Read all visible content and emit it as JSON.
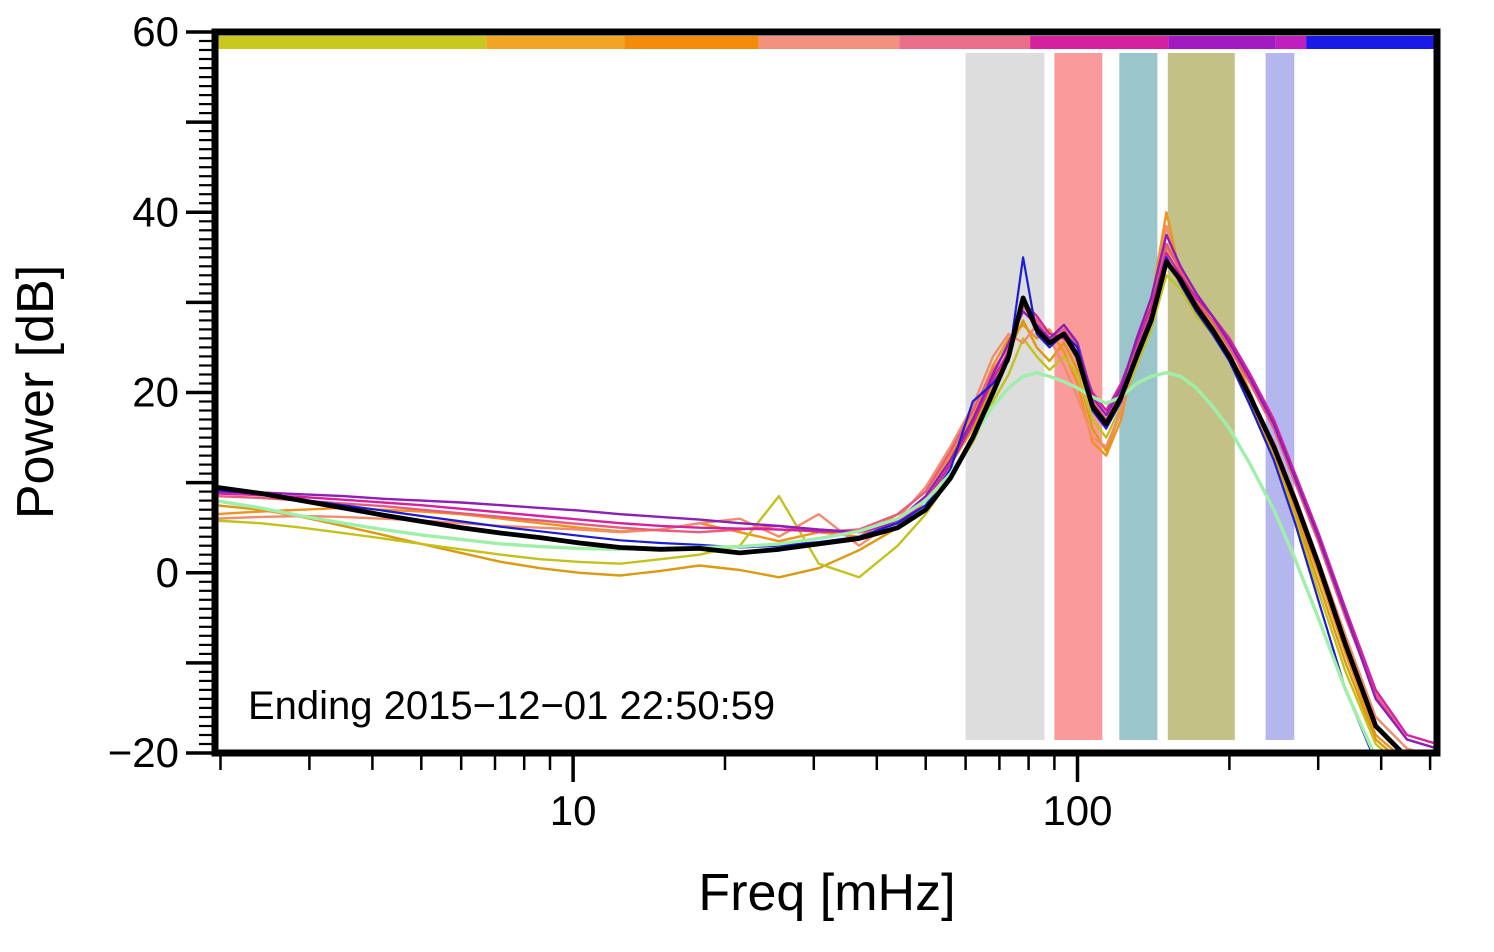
{
  "figure": {
    "background": "#FFFFFF",
    "frame_color": "#000000"
  },
  "chart_data": {
    "type": "line",
    "title": "",
    "xlabel": "Freq [mHz]",
    "ylabel": "Power [dB]",
    "annotation": "Ending 2015−12−01 22:50:59",
    "x_scale": "log",
    "grid": false,
    "legend": "none",
    "xlim": [
      1.95,
      516
    ],
    "ylim": [
      -20,
      60
    ],
    "x_ticks": [
      {
        "value": 10,
        "label": "10"
      },
      {
        "value": 100,
        "label": "100"
      }
    ],
    "y_ticks": [
      {
        "value": 60,
        "label": "60"
      },
      {
        "value": 40,
        "label": "40"
      },
      {
        "value": 20,
        "label": "20"
      },
      {
        "value": 0,
        "label": "0"
      },
      {
        "value": -20,
        "label": "−20"
      }
    ],
    "bands": [
      {
        "name": "gray",
        "from": 60,
        "to": 86,
        "color": "#D9D9D9",
        "opacity": 0.9
      },
      {
        "name": "red",
        "from": 90,
        "to": 112,
        "color": "#F98F8F",
        "opacity": 0.9
      },
      {
        "name": "teal",
        "from": 121,
        "to": 144,
        "color": "#8FBFC4",
        "opacity": 0.9
      },
      {
        "name": "olive",
        "from": 151,
        "to": 205,
        "color": "#BEBA7A",
        "opacity": 0.9
      },
      {
        "name": "lavender",
        "from": 236,
        "to": 269,
        "color": "#A9A9EC",
        "opacity": 0.85
      }
    ],
    "top_bar_segments": [
      {
        "from": 0.0,
        "to": 0.222,
        "color": "#C8C81E"
      },
      {
        "from": 0.222,
        "to": 0.335,
        "color": "#F2A423"
      },
      {
        "from": 0.335,
        "to": 0.445,
        "color": "#F28C0A"
      },
      {
        "from": 0.445,
        "to": 0.56,
        "color": "#F2917E"
      },
      {
        "from": 0.56,
        "to": 0.667,
        "color": "#E86E8A"
      },
      {
        "from": 0.667,
        "to": 0.78,
        "color": "#D6219E"
      },
      {
        "from": 0.78,
        "to": 0.868,
        "color": "#A21BC2"
      },
      {
        "from": 0.868,
        "to": 0.893,
        "color": "#BF1FBF"
      },
      {
        "from": 0.893,
        "to": 1.0,
        "color": "#1A1AE8"
      }
    ],
    "x": [
      1.95,
      2.4,
      2.9,
      3.5,
      4.2,
      5.0,
      6.0,
      7.2,
      8.6,
      10.3,
      12.4,
      14.9,
      17.8,
      21.4,
      25.6,
      30.7,
      36.9,
      44.0,
      50.0,
      56.0,
      62.0,
      68.0,
      73.0,
      78.0,
      83.0,
      88.0,
      94.0,
      100.0,
      107.0,
      114.0,
      122.0,
      131.0,
      140.0,
      150.0,
      160.0,
      172.0,
      185.0,
      200.0,
      220.0,
      245.0,
      270.0,
      300.0,
      340.0,
      390.0,
      450.0,
      516.0
    ],
    "series": [
      {
        "name": "orange",
        "color": "#F0921E",
        "width": 2.4,
        "values": [
          6.5,
          6.8,
          7.0,
          7.2,
          7.0,
          6.8,
          6.5,
          6.0,
          5.5,
          5.0,
          4.6,
          4.8,
          5.5,
          4.5,
          3.5,
          4.5,
          4.0,
          6.5,
          9.0,
          13.0,
          17.5,
          23.0,
          26.0,
          27.5,
          26.0,
          27.0,
          24.5,
          21.0,
          14.5,
          13.0,
          17.0,
          25.5,
          30.0,
          40.0,
          33.0,
          30.5,
          28.0,
          25.5,
          20.0,
          13.5,
          7.0,
          0.0,
          -9.0,
          -18.0,
          -21.0,
          -22.0
        ]
      },
      {
        "name": "goldenrod",
        "color": "#DB9A10",
        "width": 2.4,
        "values": [
          7.5,
          7.0,
          6.2,
          5.2,
          4.2,
          3.2,
          2.2,
          1.2,
          0.5,
          0.0,
          -0.3,
          0.2,
          0.8,
          0.3,
          -0.5,
          0.5,
          2.5,
          5.0,
          8.0,
          12.0,
          16.0,
          21.0,
          24.5,
          28.0,
          25.0,
          23.5,
          25.5,
          22.5,
          16.0,
          13.5,
          18.0,
          23.5,
          28.5,
          36.0,
          34.0,
          30.0,
          27.5,
          24.5,
          19.0,
          13.0,
          6.5,
          -1.0,
          -10.0,
          -18.5,
          -21.5,
          -22.5
        ]
      },
      {
        "name": "olive",
        "color": "#C2C21C",
        "width": 2.4,
        "values": [
          5.8,
          5.5,
          5.0,
          4.4,
          3.8,
          3.2,
          2.6,
          2.0,
          1.5,
          1.2,
          1.0,
          1.5,
          2.0,
          3.0,
          8.5,
          1.0,
          -0.5,
          3.0,
          6.5,
          10.5,
          14.5,
          19.0,
          22.0,
          26.0,
          24.0,
          22.5,
          24.0,
          22.0,
          17.0,
          15.0,
          18.5,
          23.0,
          27.0,
          33.0,
          31.5,
          28.5,
          26.5,
          23.5,
          18.5,
          12.5,
          6.0,
          -2.0,
          -11.0,
          -19.0,
          -22.0,
          -23.0
        ]
      },
      {
        "name": "salmon",
        "color": "#F28C6E",
        "width": 2.4,
        "values": [
          6.0,
          6.2,
          6.3,
          6.2,
          6.0,
          5.8,
          5.5,
          5.2,
          5.0,
          4.8,
          4.5,
          4.8,
          5.5,
          6.0,
          4.0,
          6.5,
          3.0,
          6.0,
          9.5,
          14.0,
          18.5,
          24.0,
          26.5,
          25.5,
          27.5,
          26.0,
          23.0,
          19.5,
          15.0,
          14.0,
          18.0,
          24.5,
          29.5,
          38.5,
          32.5,
          29.0,
          27.0,
          24.5,
          19.5,
          14.5,
          8.5,
          1.5,
          -7.0,
          -16.0,
          -19.5,
          -20.5
        ]
      },
      {
        "name": "pink",
        "color": "#E85A7E",
        "width": 2.4,
        "values": [
          8.5,
          8.3,
          8.0,
          7.7,
          7.4,
          7.0,
          6.6,
          6.2,
          5.8,
          5.4,
          5.0,
          4.7,
          4.5,
          4.8,
          5.2,
          4.5,
          4.8,
          6.5,
          9.0,
          13.5,
          18.0,
          22.5,
          25.0,
          29.5,
          28.0,
          26.0,
          27.0,
          25.0,
          19.0,
          17.0,
          20.0,
          25.0,
          29.0,
          36.5,
          33.5,
          30.0,
          28.0,
          25.0,
          21.0,
          16.0,
          10.0,
          3.5,
          -5.0,
          -13.5,
          -18.5,
          -19.5
        ]
      },
      {
        "name": "magenta",
        "color": "#D6219E",
        "width": 2.4,
        "values": [
          8.8,
          8.6,
          8.4,
          8.1,
          7.8,
          7.5,
          7.1,
          6.7,
          6.3,
          5.9,
          5.5,
          5.2,
          5.0,
          4.9,
          4.8,
          4.6,
          4.5,
          5.5,
          8.0,
          12.0,
          16.5,
          21.5,
          24.5,
          30.0,
          28.5,
          26.5,
          26.0,
          24.5,
          20.0,
          18.0,
          21.0,
          25.5,
          29.5,
          35.5,
          33.0,
          30.5,
          28.5,
          26.0,
          22.0,
          17.0,
          11.0,
          4.5,
          -4.0,
          -13.0,
          -18.0,
          -19.0
        ]
      },
      {
        "name": "purple",
        "color": "#8E1FB4",
        "width": 2.4,
        "values": [
          9.0,
          8.9,
          8.7,
          8.5,
          8.2,
          8.0,
          7.8,
          7.5,
          7.2,
          6.9,
          6.5,
          6.2,
          5.9,
          5.5,
          5.2,
          4.8,
          4.5,
          5.8,
          8.5,
          12.5,
          17.0,
          22.0,
          25.5,
          29.0,
          27.5,
          26.0,
          27.5,
          25.5,
          19.5,
          17.5,
          20.5,
          26.0,
          30.5,
          37.5,
          34.0,
          31.0,
          28.5,
          25.5,
          21.5,
          16.5,
          10.5,
          4.0,
          -4.5,
          -14.0,
          -18.5,
          -19.5
        ]
      },
      {
        "name": "blue",
        "color": "#1C1CD6",
        "width": 2.2,
        "values": [
          9.2,
          8.7,
          8.1,
          7.5,
          6.9,
          6.3,
          5.7,
          5.1,
          4.6,
          4.1,
          3.6,
          3.3,
          3.1,
          2.8,
          3.0,
          3.4,
          4.0,
          5.5,
          7.5,
          11.5,
          19.0,
          21.0,
          23.5,
          35.0,
          26.5,
          25.0,
          26.5,
          25.0,
          18.0,
          16.0,
          19.0,
          24.5,
          28.5,
          35.0,
          32.0,
          29.0,
          26.5,
          23.5,
          18.5,
          12.5,
          5.5,
          -3.0,
          -13.0,
          -21.0,
          -23.0,
          -24.0
        ]
      },
      {
        "name": "lightgreen",
        "color": "#9FEFA9",
        "width": 3.4,
        "values": [
          8.0,
          7.2,
          6.3,
          5.5,
          4.8,
          4.2,
          3.7,
          3.2,
          2.9,
          2.7,
          2.6,
          2.7,
          2.8,
          2.9,
          3.2,
          3.8,
          4.6,
          6.0,
          8.0,
          11.0,
          15.0,
          18.5,
          20.5,
          21.8,
          22.2,
          21.8,
          21.2,
          20.5,
          19.5,
          18.8,
          19.5,
          21.0,
          21.8,
          22.2,
          21.8,
          20.5,
          18.5,
          16.0,
          12.0,
          7.0,
          1.5,
          -5.0,
          -13.0,
          -20.5,
          -24.0,
          -26.0
        ]
      },
      {
        "name": "mean",
        "color": "#000000",
        "width": 4.8,
        "values": [
          9.5,
          8.8,
          8.0,
          7.2,
          6.4,
          5.7,
          5.0,
          4.4,
          3.9,
          3.3,
          2.8,
          2.6,
          2.7,
          2.2,
          2.6,
          3.2,
          3.8,
          5.0,
          7.0,
          10.5,
          15.0,
          20.0,
          24.0,
          30.5,
          27.0,
          25.5,
          26.5,
          24.0,
          18.5,
          16.5,
          19.5,
          24.0,
          28.0,
          34.5,
          32.5,
          29.5,
          27.0,
          24.0,
          19.5,
          14.0,
          8.0,
          1.0,
          -8.0,
          -17.0,
          -20.5,
          -21.0
        ]
      }
    ]
  }
}
